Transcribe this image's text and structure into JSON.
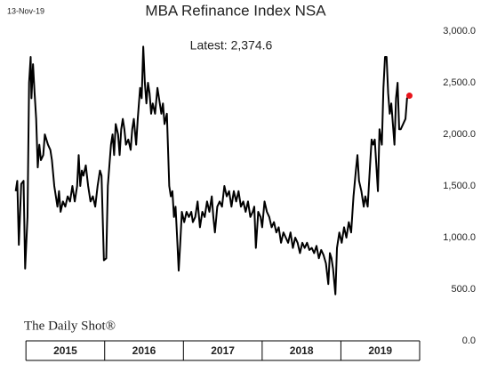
{
  "chart_data": {
    "type": "line",
    "title": "MBA Refinance Index NSA",
    "date_label": "13-Nov-19",
    "annotation": "Latest:  2,374.6",
    "source": "The Daily Shot®",
    "categories": [
      "2015",
      "2016",
      "2017",
      "2018",
      "2019"
    ],
    "xlim": [
      2014.84,
      2020
    ],
    "ylim": [
      0,
      3000
    ],
    "yticks": [
      {
        "value": 0,
        "label": "0.0"
      },
      {
        "value": 500,
        "label": "500.0"
      },
      {
        "value": 1000,
        "label": "1,000.0"
      },
      {
        "value": 1500,
        "label": "1,500.0"
      },
      {
        "value": 2000,
        "label": "2,000.0"
      },
      {
        "value": 2500,
        "label": "2,500.0"
      },
      {
        "value": 3000,
        "label": "3,000.0"
      }
    ],
    "grid": false,
    "color": "#000000",
    "last_point_color": "#e8141b",
    "x": [
      2014.87,
      2014.89,
      2014.91,
      2014.94,
      2014.97,
      2014.99,
      2015.02,
      2015.04,
      2015.06,
      2015.07,
      2015.09,
      2015.11,
      2015.13,
      2015.15,
      2015.17,
      2015.19,
      2015.22,
      2015.24,
      2015.26,
      2015.28,
      2015.31,
      2015.33,
      2015.36,
      2015.38,
      2015.4,
      2015.42,
      2015.44,
      2015.47,
      2015.5,
      2015.53,
      2015.56,
      2015.59,
      2015.62,
      2015.65,
      2015.67,
      2015.69,
      2015.71,
      2015.73,
      2015.76,
      2015.79,
      2015.82,
      2015.85,
      2015.88,
      2015.91,
      2015.94,
      2015.96,
      2015.99,
      2016.02,
      2016.04,
      2016.06,
      2016.08,
      2016.1,
      2016.12,
      2016.14,
      2016.17,
      2016.19,
      2016.21,
      2016.23,
      2016.25,
      2016.27,
      2016.3,
      2016.33,
      2016.35,
      2016.37,
      2016.4,
      2016.42,
      2016.45,
      2016.47,
      2016.49,
      2016.51,
      2016.53,
      2016.55,
      2016.57,
      2016.59,
      2016.61,
      2016.64,
      2016.67,
      2016.69,
      2016.72,
      2016.74,
      2016.76,
      2016.79,
      2016.82,
      2016.84,
      2016.86,
      2016.88,
      2016.9,
      2016.92,
      2016.94,
      2016.96,
      2016.98,
      2017.01,
      2017.04,
      2017.07,
      2017.1,
      2017.12,
      2017.15,
      2017.18,
      2017.21,
      2017.24,
      2017.27,
      2017.3,
      2017.33,
      2017.36,
      2017.38,
      2017.4,
      2017.43,
      2017.46,
      2017.49,
      2017.52,
      2017.55,
      2017.58,
      2017.61,
      2017.64,
      2017.67,
      2017.7,
      2017.73,
      2017.76,
      2017.79,
      2017.82,
      2017.85,
      2017.88,
      2017.9,
      2017.92,
      2017.95,
      2017.98,
      2018.0,
      2018.03,
      2018.06,
      2018.09,
      2018.12,
      2018.15,
      2018.18,
      2018.21,
      2018.24,
      2018.27,
      2018.3,
      2018.33,
      2018.36,
      2018.39,
      2018.42,
      2018.45,
      2018.48,
      2018.51,
      2018.54,
      2018.57,
      2018.6,
      2018.63,
      2018.66,
      2018.69,
      2018.72,
      2018.75,
      2018.78,
      2018.81,
      2018.84,
      2018.86,
      2018.88,
      2018.9,
      2018.93,
      2018.95,
      2018.98,
      2019.01,
      2019.04,
      2019.07,
      2019.1,
      2019.13,
      2019.16,
      2019.19,
      2019.21,
      2019.23,
      2019.26,
      2019.29,
      2019.31,
      2019.34,
      2019.37,
      2019.39,
      2019.41,
      2019.43,
      2019.45,
      2019.47,
      2019.49,
      2019.52,
      2019.54,
      2019.56,
      2019.58,
      2019.6,
      2019.62,
      2019.64,
      2019.66,
      2019.68,
      2019.7,
      2019.72,
      2019.74,
      2019.76,
      2019.79,
      2019.82,
      2019.84,
      2019.87
    ],
    "values": [
      1450,
      1550,
      930,
      1520,
      1550,
      700,
      1200,
      2500,
      2750,
      2350,
      2680,
      2400,
      2150,
      1680,
      1900,
      1750,
      1800,
      2000,
      1950,
      1900,
      1850,
      1750,
      1500,
      1400,
      1300,
      1450,
      1250,
      1350,
      1300,
      1400,
      1350,
      1500,
      1350,
      1500,
      1800,
      1500,
      1650,
      1600,
      1700,
      1500,
      1350,
      1400,
      1300,
      1500,
      1650,
      1600,
      780,
      800,
      1500,
      1700,
      1900,
      2000,
      1800,
      2100,
      2000,
      1800,
      2050,
      2150,
      2050,
      1900,
      1950,
      1850,
      2050,
      2150,
      1900,
      2150,
      2450,
      2350,
      2850,
      2500,
      2300,
      2500,
      2400,
      2200,
      2300,
      2200,
      2450,
      2350,
      2200,
      2300,
      2100,
      2200,
      1500,
      1400,
      1450,
      1200,
      1300,
      1000,
      680,
      950,
      1250,
      1150,
      1250,
      1200,
      1250,
      1150,
      1200,
      1350,
      1100,
      1250,
      1200,
      1350,
      1250,
      1400,
      1200,
      1050,
      1300,
      1350,
      1300,
      1500,
      1400,
      1450,
      1300,
      1450,
      1350,
      1450,
      1300,
      1350,
      1250,
      1350,
      1200,
      1250,
      1300,
      900,
      1250,
      1200,
      1100,
      1350,
      1250,
      1200,
      1100,
      1150,
      1050,
      1100,
      950,
      1050,
      1000,
      950,
      1050,
      900,
      1000,
      950,
      850,
      950,
      900,
      950,
      880,
      900,
      850,
      920,
      800,
      880,
      830,
      750,
      550,
      850,
      800,
      700,
      450,
      900,
      1050,
      950,
      1100,
      1000,
      1150,
      1050,
      1400,
      1650,
      1800,
      1550,
      1450,
      1300,
      1400,
      1300,
      1700,
      1950,
      1900,
      1950,
      1700,
      1450,
      2050,
      1900,
      2450,
      2750,
      2750,
      2400,
      2200,
      2300,
      2100,
      1900,
      2350,
      2500,
      2050,
      2050,
      2100,
      2150,
      2350,
      2374.6
    ]
  }
}
